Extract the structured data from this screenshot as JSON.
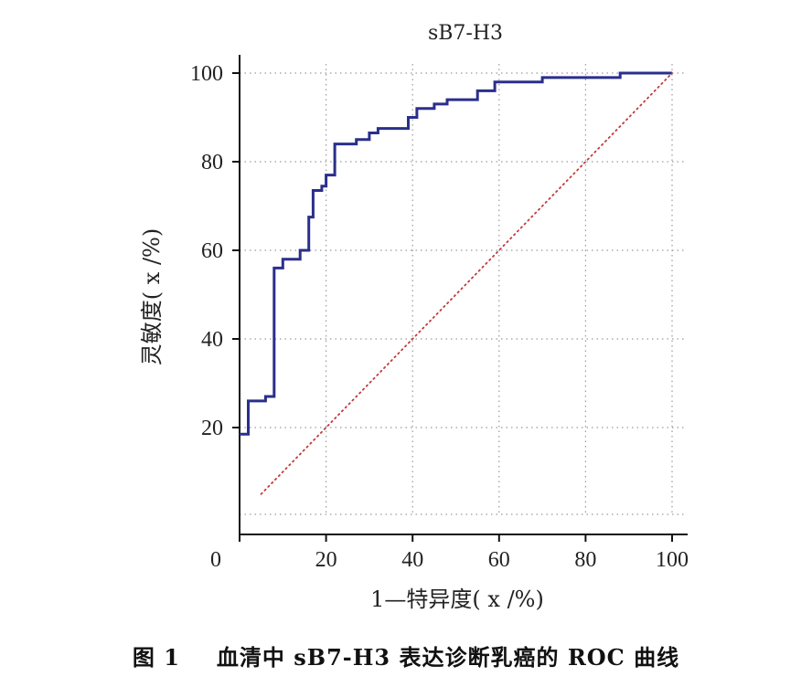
{
  "chart_data": {
    "type": "line",
    "title": "sB7-H3",
    "xlabel": "1—特异度( x /%)",
    "ylabel": "灵敏度( x /%)",
    "xlim": [
      0,
      100
    ],
    "ylim": [
      0,
      100
    ],
    "x_ticks": [
      "0",
      "20",
      "40",
      "60",
      "80",
      "100"
    ],
    "y_ticks": [
      "20",
      "40",
      "60",
      "80",
      "100"
    ],
    "grid": "dotted",
    "series": [
      {
        "kind": "roc-step",
        "color": "#2a2f8c",
        "x": [
          0,
          2,
          2,
          6,
          6,
          8,
          8,
          10,
          10,
          14,
          14,
          16,
          16,
          17,
          17,
          19,
          19,
          20,
          20,
          22,
          22,
          27,
          27,
          30,
          30,
          32,
          32,
          39,
          39,
          41,
          41,
          45,
          45,
          48,
          48,
          55,
          55,
          59,
          59,
          70,
          70,
          88,
          88,
          100
        ],
        "y": [
          18.5,
          18.5,
          26,
          26,
          27,
          27,
          56,
          56,
          58,
          58,
          60,
          60,
          67.5,
          67.5,
          73.5,
          73.5,
          74.5,
          74.5,
          77,
          77,
          84,
          84,
          85,
          85,
          86.5,
          86.5,
          87.5,
          87.5,
          90,
          90,
          92,
          92,
          93,
          93,
          94,
          94,
          96,
          96,
          98,
          98,
          99,
          99,
          100,
          100
        ]
      },
      {
        "kind": "reference-diagonal",
        "color": "#c0393b",
        "x": [
          5,
          100
        ],
        "y": [
          5,
          100
        ]
      }
    ]
  },
  "caption": {
    "figure_label": "图 1",
    "text": "血清中 sB7-H3 表达诊断乳癌的 ROC 曲线"
  }
}
